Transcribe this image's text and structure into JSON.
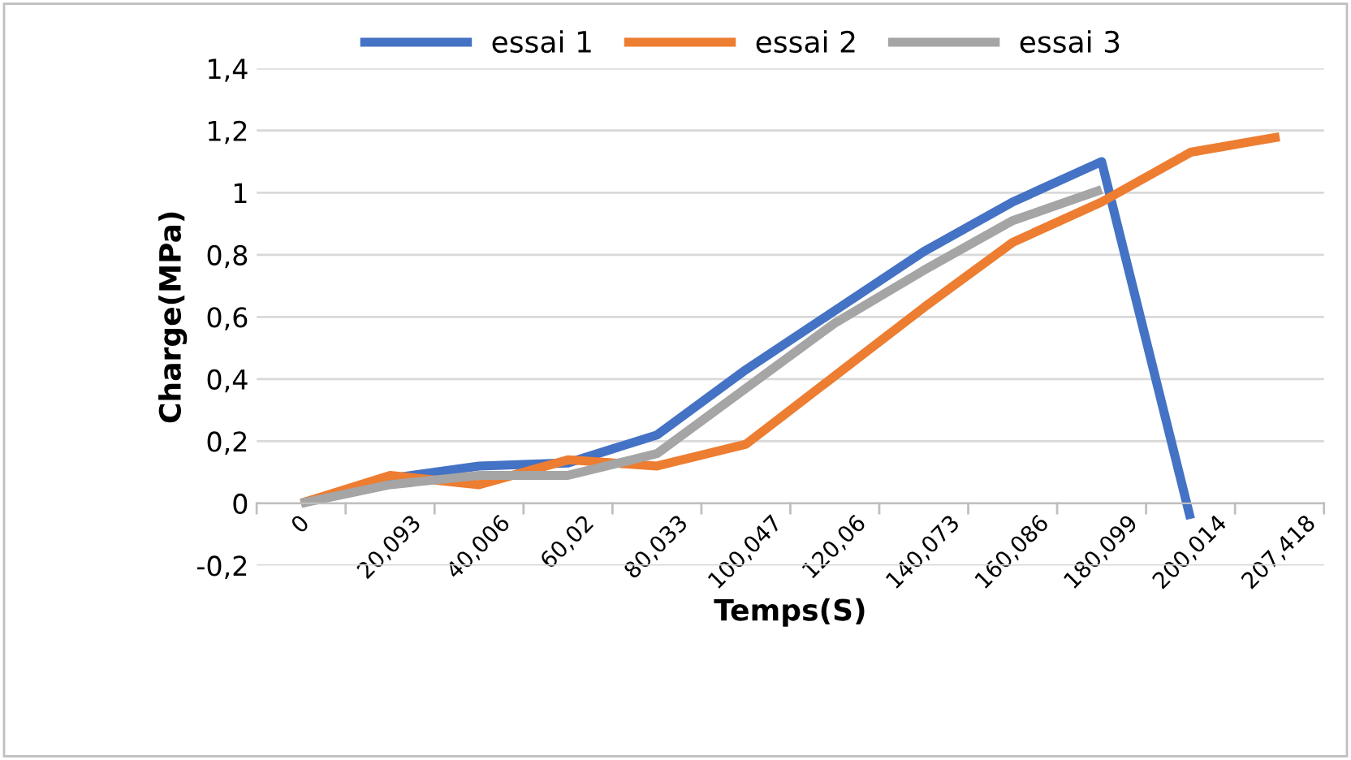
{
  "chart_data": {
    "type": "line",
    "xlabel": "Temps(S)",
    "ylabel": "Charge(MPa)",
    "categories": [
      "0",
      "20,093",
      "40,006",
      "60,02",
      "80,033",
      "100,047",
      "120,06",
      "140,073",
      "160,086",
      "180,099",
      "200,014",
      "207,418"
    ],
    "series": [
      {
        "name": "essai 1",
        "color": "#4472c4",
        "values": [
          0,
          0.08,
          0.12,
          0.13,
          0.22,
          0.43,
          0.62,
          0.81,
          0.97,
          1.1,
          -0.05,
          null
        ]
      },
      {
        "name": "essai 2",
        "color": "#ed7d31",
        "values": [
          0,
          0.09,
          0.06,
          0.14,
          0.12,
          0.19,
          0.41,
          0.63,
          0.84,
          0.97,
          1.13,
          1.18
        ]
      },
      {
        "name": "essai 3",
        "color": "#a5a5a5",
        "values": [
          0,
          0.06,
          0.09,
          0.09,
          0.16,
          0.37,
          0.58,
          0.75,
          0.91,
          1.01,
          null,
          null
        ]
      }
    ],
    "ylim": [
      -0.2,
      1.4
    ],
    "yticks": [
      {
        "value": -0.2,
        "label": "-0,2"
      },
      0,
      {
        "value": 0.2,
        "label": "0,2"
      },
      {
        "value": 0.4,
        "label": "0,4"
      },
      {
        "value": 0.6,
        "label": "0,6"
      },
      {
        "value": 0.8,
        "label": "0,8"
      },
      1,
      {
        "value": 1.2,
        "label": "1,2"
      },
      {
        "value": 1.4,
        "label": "1,4"
      }
    ],
    "grid": "y",
    "legend": "top",
    "marker": "none",
    "line_style": "solid"
  }
}
